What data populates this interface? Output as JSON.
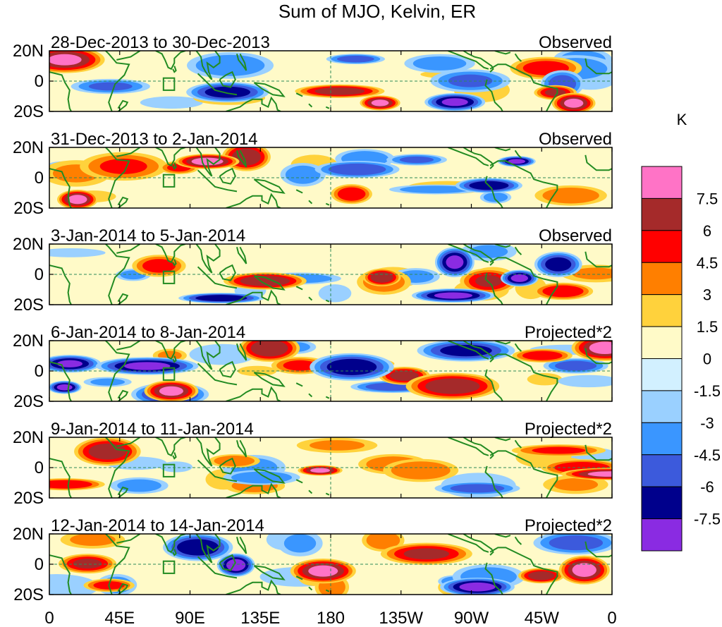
{
  "title": "Sum of MJO, Kelvin, ER",
  "colorbar": {
    "unit": "K",
    "levels": [
      "7.5",
      "6",
      "4.5",
      "3",
      "1.5",
      "0",
      "-1.5",
      "-3",
      "-4.5",
      "-6",
      "-7.5"
    ],
    "colors": [
      "#ff73c6",
      "#a52a2a",
      "#ff0000",
      "#ff7f00",
      "#ffd23c",
      "#fffac8",
      "#d2f0ff",
      "#9ad0ff",
      "#3a96ff",
      "#3c5adc",
      "#00008c",
      "#8a2be2"
    ]
  },
  "lat_labels": [
    "20N",
    "0",
    "20S"
  ],
  "lon_labels": [
    "0",
    "45E",
    "90E",
    "135E",
    "180",
    "135W",
    "90W",
    "45W",
    "0"
  ],
  "panels": [
    {
      "dates": "28-Dec-2013 to 30-Dec-2013",
      "kind": "Observed",
      "seed": 3
    },
    {
      "dates": "31-Dec-2013 to 2-Jan-2014",
      "kind": "Observed",
      "seed": 7
    },
    {
      "dates": "3-Jan-2014 to 5-Jan-2014",
      "kind": "Observed",
      "seed": 11
    },
    {
      "dates": "6-Jan-2014 to 8-Jan-2014",
      "kind": "Projected*2",
      "seed": 17
    },
    {
      "dates": "9-Jan-2014 to 11-Jan-2014",
      "kind": "Projected*2",
      "seed": 23
    },
    {
      "dates": "12-Jan-2014 to 14-Jan-2014",
      "kind": "Projected*2",
      "seed": 29
    }
  ],
  "colors": {
    "coast": "#228B22",
    "equator": "#2e8b57"
  }
}
